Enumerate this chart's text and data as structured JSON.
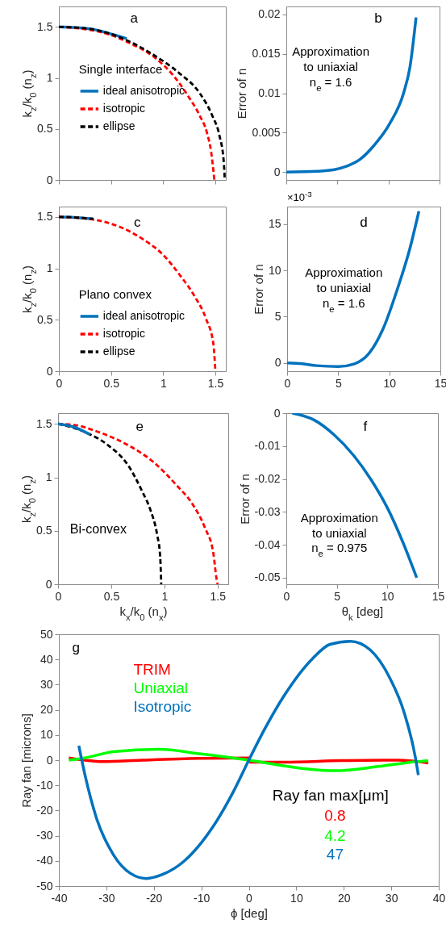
{
  "chart_data": [
    {
      "type": "line",
      "annotations": [
        "a"
      ],
      "ylabel": "k$_{z}$/k$_{0}$ (n$_{z}$)",
      "legend_title": "Single interface",
      "legend": "left",
      "tick_labels": "y",
      "xlim": [
        0,
        1.6
      ],
      "xticks": [
        0,
        0.5,
        1,
        1.5
      ],
      "ylim": [
        0,
        1.7
      ],
      "yticks": [
        0,
        0.5,
        1,
        1.5
      ],
      "series": [
        {
          "name": "ideal anisotropic",
          "color": "#0072bd",
          "line_style": "solid",
          "x": [
            0,
            0.3,
            0.5,
            0.65
          ],
          "values": [
            1.5,
            1.48,
            1.43,
            1.385
          ]
        },
        {
          "name": "isotropic",
          "color": "#ff0000",
          "line_style": "dashed",
          "x": [
            0,
            0.3,
            0.5,
            0.65,
            0.93,
            1.1,
            1.24,
            1.35,
            1.42,
            1.46,
            1.49
          ],
          "values": [
            1.5,
            1.47,
            1.42,
            1.355,
            1.19,
            1.02,
            0.82,
            0.63,
            0.46,
            0.27,
            0
          ]
        },
        {
          "name": "ellipse",
          "color": "#000000",
          "line_style": "dashed",
          "x": [
            0,
            0.3,
            0.5,
            0.71,
            0.9,
            1.15,
            1.35,
            1.47,
            1.54,
            1.58,
            1.59
          ],
          "values": [
            1.5,
            1.48,
            1.43,
            1.34,
            1.23,
            1.05,
            0.85,
            0.63,
            0.43,
            0.18,
            0
          ]
        }
      ]
    },
    {
      "type": "line",
      "annotations": [
        "b",
        "Approximation\nto uniaxial\nn$_{e}$ = 1.6"
      ],
      "ylabel": "Error of n",
      "tick_labels": "y",
      "xlim": [
        0,
        15
      ],
      "xticks": [
        0,
        5,
        10,
        15
      ],
      "ylim": [
        -0.001,
        0.021
      ],
      "yticks": [
        0,
        0.005,
        0.01,
        0.015,
        0.02
      ],
      "series": [
        {
          "color": "#0072bd",
          "line_style": "solid",
          "x": [
            0,
            3,
            4.7,
            5.8,
            7.2,
            8.6,
            10.1,
            11.5,
            12.1,
            12.7
          ],
          "values": [
            0,
            0.0001,
            0.0003,
            0.0007,
            0.0016,
            0.0034,
            0.0061,
            0.0101,
            0.0133,
            0.0196
          ]
        }
      ]
    },
    {
      "type": "line",
      "annotations": [
        "c"
      ],
      "ylabel": "k$_{z}$/k$_{0}$ (n$_{z}$)",
      "legend_title": "Plano convex",
      "legend": "bottom left",
      "xlim": [
        0,
        1.6
      ],
      "xticks": [
        0,
        0.5,
        1,
        1.5
      ],
      "ylim": [
        0,
        1.6
      ],
      "yticks": [
        0,
        0.5,
        1,
        1.5
      ],
      "series": [
        {
          "name": "ideal anisotropic",
          "color": "#0072bd",
          "line_style": "solid",
          "x": [
            0,
            0.15,
            0.33
          ],
          "values": [
            1.5,
            1.495,
            1.48
          ]
        },
        {
          "name": "isotropic",
          "color": "#ff0000",
          "line_style": "dashed",
          "x": [
            0,
            0.32,
            0.59,
            0.81,
            0.99,
            1.17,
            1.3,
            1.41,
            1.48,
            1.5
          ],
          "values": [
            1.5,
            1.475,
            1.4,
            1.28,
            1.14,
            0.92,
            0.73,
            0.51,
            0.27,
            0
          ]
        },
        {
          "name": "ellipse",
          "color": "#000000",
          "line_style": "dashed",
          "x": [
            0,
            0.15,
            0.33
          ],
          "values": [
            1.5,
            1.495,
            1.48
          ]
        }
      ]
    },
    {
      "type": "line",
      "annotations": [
        "d",
        "Approximation\nto uniaxial\nn$_{e}$ = 1.6",
        "×10$^{-3}$"
      ],
      "ylabel": "Error of n",
      "xlim": [
        0,
        15
      ],
      "xticks": [
        0,
        5,
        10,
        15
      ],
      "ylim": [
        -0.9,
        16.9
      ],
      "yticks": [
        0,
        5,
        10,
        15
      ],
      "series": [
        {
          "color": "#0072bd",
          "line_style": "solid",
          "x": [
            0,
            1.5,
            2.9,
            5,
            6.6,
            8,
            9.4,
            10.8,
            12,
            12.9
          ],
          "values": [
            0,
            -0.1,
            -0.3,
            -0.4,
            -0.1,
            1.0,
            3.7,
            8.0,
            12.3,
            16.4
          ]
        }
      ]
    },
    {
      "type": "line",
      "annotations": [
        "e",
        "Bi-convex"
      ],
      "xlabel": "k$_{x}$/k$_{0}$ (n$_{x}$)",
      "ylabel": "k$_{z}$/k$_{0}$ (n$_{z}$)",
      "xlim": [
        0,
        1.6
      ],
      "xticks": [
        0,
        0.5,
        1,
        1.5
      ],
      "ylim": [
        0,
        1.6
      ],
      "yticks": [
        0,
        0.5,
        1,
        1.5
      ],
      "series": [
        {
          "color": "#ff0000",
          "line_style": "dashed",
          "x": [
            0,
            0.15,
            0.39,
            0.66,
            0.9,
            1.11,
            1.27,
            1.38,
            1.46,
            1.49,
            1.5
          ],
          "values": [
            1.5,
            1.49,
            1.42,
            1.3,
            1.14,
            0.93,
            0.74,
            0.53,
            0.29,
            0.05,
            0
          ]
        },
        {
          "color": "#000000",
          "line_style": "dashed",
          "x": [
            0,
            0.26,
            0.47,
            0.66,
            0.79,
            0.87,
            0.93,
            0.96,
            0.97
          ],
          "values": [
            1.5,
            1.42,
            1.3,
            1.11,
            0.87,
            0.69,
            0.47,
            0.26,
            0
          ]
        },
        {
          "color": "#0072bd",
          "line_style": "solid",
          "x": [
            0,
            0.15,
            0.3
          ],
          "values": [
            1.5,
            1.47,
            1.4
          ]
        }
      ]
    },
    {
      "type": "line",
      "annotations": [
        "f",
        "Approximation\nto uniaxial\nn$_{e}$ = 0.975"
      ],
      "xlabel": "θ$_{k}$ [deg]",
      "ylabel": "Error of n",
      "xlim": [
        0,
        15
      ],
      "xticks": [
        0,
        5,
        10,
        15
      ],
      "ylim": [
        -0.052,
        0
      ],
      "yticks": [
        -0.05,
        -0.04,
        -0.03,
        -0.02,
        -0.01,
        0
      ],
      "series": [
        {
          "color": "#0072bd",
          "line_style": "solid",
          "x": [
            0.6,
            2.7,
            4.7,
            6.7,
            8.4,
            10.1,
            11.5,
            12.9
          ],
          "values": [
            0,
            -0.002,
            -0.0065,
            -0.013,
            -0.0203,
            -0.0294,
            -0.039,
            -0.05
          ]
        }
      ]
    },
    {
      "type": "line",
      "annotations": [
        "g",
        "Ray fan max[μm]",
        "0.8",
        "4.2",
        "47"
      ],
      "xlabel": "ϕ [deg]",
      "ylabel": "Ray fan [microns]",
      "legend": "top left",
      "xlim": [
        -40,
        40
      ],
      "xticks": [
        -40,
        -30,
        -20,
        -10,
        0,
        10,
        20,
        30,
        40
      ],
      "ylim": [
        -50,
        50
      ],
      "yticks": [
        -50,
        -40,
        -30,
        -20,
        -10,
        0,
        10,
        20,
        30,
        40,
        50
      ],
      "series": [
        {
          "name": "TRIM",
          "color": "#ff0000",
          "line_style": "solid",
          "x": [
            -37.9,
            -34.5,
            -30.9,
            -22.5,
            -10.5,
            0,
            0.3,
            7.5,
            19.5,
            28.5,
            31.5,
            37.8
          ],
          "values": [
            0.9,
            0,
            -0.6,
            0,
            0.7,
            0.9,
            -0.8,
            -0.8,
            -0.2,
            0,
            0,
            -1.1
          ]
        },
        {
          "name": "Uniaxial",
          "color": "#00ff00",
          "line_style": "solid",
          "x": [
            -37.9,
            -34.5,
            -28.5,
            -18.9,
            -10.5,
            0,
            10.5,
            18.3,
            27.3,
            35.1,
            37.8
          ],
          "values": [
            0,
            0.9,
            3.4,
            4.3,
            2.6,
            0,
            -3.1,
            -4.2,
            -2.5,
            -0.6,
            -0.2
          ]
        },
        {
          "name": "Isotropic",
          "color": "#0072bd",
          "line_style": "solid",
          "x": [
            -35.8,
            -34.5,
            -32.1,
            -28.5,
            -24.9,
            -21.6,
            -18.3,
            -13.5,
            -7.5,
            -3.3,
            0,
            3.3,
            7.5,
            13.5,
            17.1,
            21.4,
            25.5,
            29.7,
            32.7,
            35.1,
            35.7
          ],
          "values": [
            5.7,
            -5.9,
            -22.9,
            -37.6,
            -45,
            -47,
            -45.5,
            -39.9,
            -26.3,
            -12.7,
            0,
            12.2,
            25.8,
            40.5,
            46,
            47.2,
            43.9,
            32.6,
            19,
            0.9,
            -5.9
          ]
        }
      ]
    }
  ]
}
